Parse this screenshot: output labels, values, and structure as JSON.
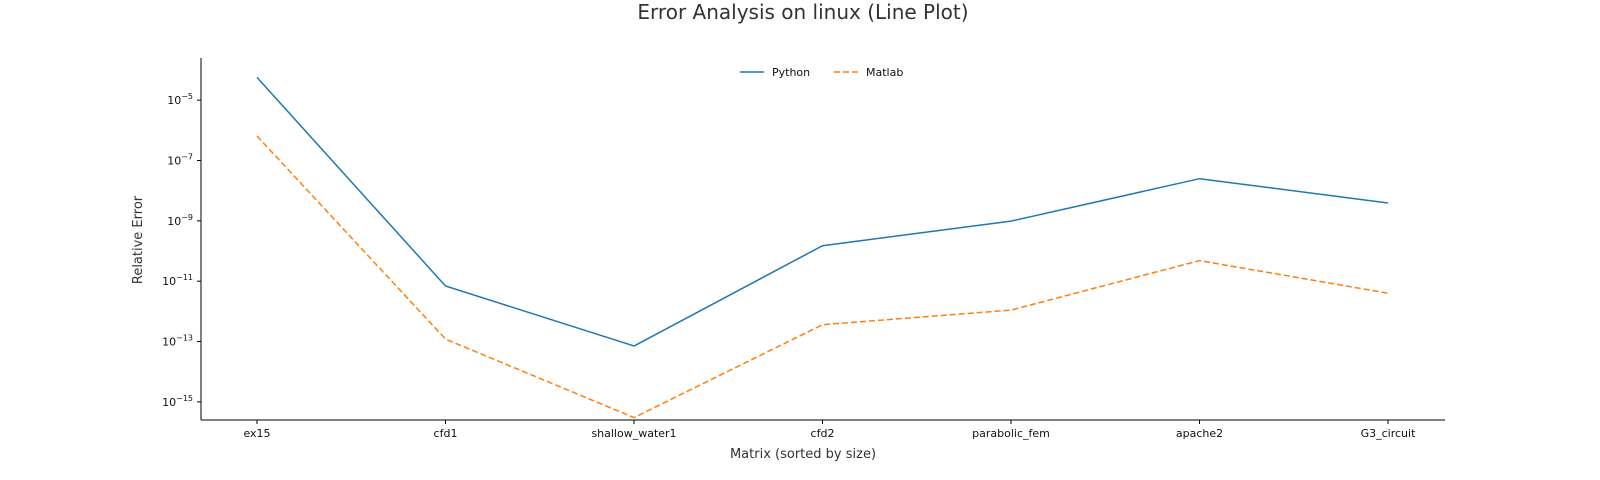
{
  "chart_data": {
    "type": "line",
    "title": "Error Analysis on linux (Line Plot)",
    "xlabel": "Matrix (sorted by size)",
    "ylabel": "Relative Error",
    "yscale": "log",
    "ylim": [
      2.5e-16,
      0.00025
    ],
    "categories": [
      "ex15",
      "cfd1",
      "shallow_water1",
      "cfd2",
      "parabolic_fem",
      "apache2",
      "G3_circuit"
    ],
    "yticks": [
      {
        "value": 1e-05,
        "base": "10",
        "exp": "−5"
      },
      {
        "value": 1e-07,
        "base": "10",
        "exp": "−7"
      },
      {
        "value": 1e-09,
        "base": "10",
        "exp": "−9"
      },
      {
        "value": 1e-11,
        "base": "10",
        "exp": "−11"
      },
      {
        "value": 1e-13,
        "base": "10",
        "exp": "−13"
      },
      {
        "value": 1e-15,
        "base": "10",
        "exp": "−15"
      }
    ],
    "series": [
      {
        "name": "Python",
        "color": "#1f77b4",
        "dash": "solid",
        "values": [
          5.7e-05,
          6.9e-12,
          7.1e-14,
          1.5e-10,
          9.8e-10,
          2.5e-08,
          3.9e-09
        ]
      },
      {
        "name": "Matlab",
        "color": "#ff7f0e",
        "dash": "dashed",
        "values": [
          6.5e-07,
          1.2e-13,
          3e-16,
          3.6e-13,
          1.1e-12,
          4.8e-11,
          4e-12
        ]
      }
    ],
    "legend_position": "top-center",
    "grid": false
  }
}
